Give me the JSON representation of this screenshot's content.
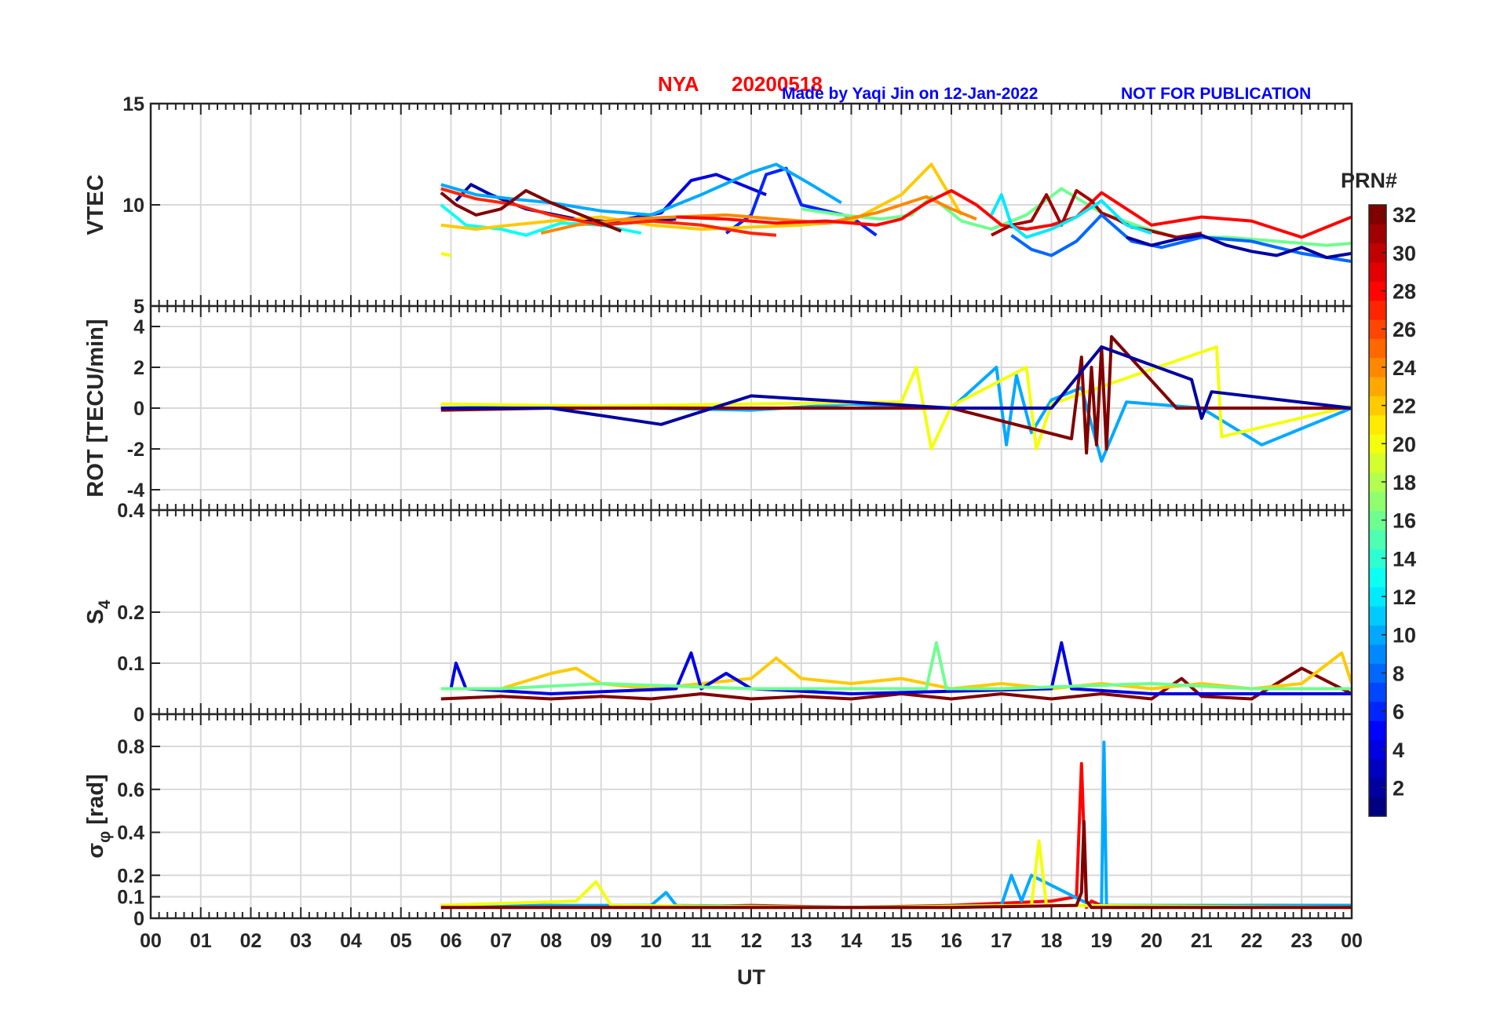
{
  "header": {
    "station": "NYA",
    "date": "20200518",
    "credit": "Made by Yaqi Jin on 12-Jan-2022",
    "notice": "NOT FOR PUBLICATION"
  },
  "xaxis": {
    "label": "UT",
    "ticks": [
      "00",
      "01",
      "02",
      "03",
      "04",
      "05",
      "06",
      "07",
      "08",
      "09",
      "10",
      "11",
      "12",
      "13",
      "14",
      "15",
      "16",
      "17",
      "18",
      "19",
      "20",
      "21",
      "22",
      "23",
      "00"
    ]
  },
  "colorbar": {
    "label": "PRN#",
    "ticks": [
      "2",
      "4",
      "6",
      "8",
      "10",
      "12",
      "14",
      "16",
      "18",
      "20",
      "22",
      "24",
      "26",
      "28",
      "30",
      "32"
    ],
    "range": [
      1,
      32
    ],
    "colormap": "jet"
  },
  "panels": [
    {
      "key": "vtec",
      "ylabel": "VTEC",
      "ylim": [
        5,
        15
      ],
      "yticks": [
        "5",
        "10",
        "15"
      ]
    },
    {
      "key": "rot",
      "ylabel": "ROT [TECU/min]",
      "ylim": [
        -5,
        5
      ],
      "yticks": [
        "-4",
        "-2",
        "0",
        "2",
        "4"
      ]
    },
    {
      "key": "s4",
      "ylabel_main": "S",
      "ylabel_sub": "4",
      "ylim": [
        0,
        0.4
      ],
      "yticks": [
        "0",
        "0.1",
        "0.2",
        "0.4"
      ]
    },
    {
      "key": "sigma",
      "ylabel_main": "σ",
      "ylabel_sub": "φ",
      "ylabel_rest": " [rad]",
      "ylim": [
        0,
        0.95
      ],
      "yticks": [
        "0",
        "0.1",
        "0.2",
        "0.4",
        "0.6",
        "0.8"
      ]
    }
  ],
  "chart_data": {
    "type": "line",
    "title": "NYA   20200518",
    "xlabel": "UT",
    "xlim": [
      0,
      24
    ],
    "grid": true,
    "colorbar_label": "PRN#",
    "series": [
      {
        "name": "2",
        "panel": "vtec",
        "x": [
          6.1,
          6.4,
          6.8,
          7.5,
          8.5,
          9.5,
          10.5
        ],
        "y": [
          10.2,
          11.0,
          10.5,
          9.8,
          9.3,
          9.1,
          9.3
        ]
      },
      {
        "name": "4",
        "panel": "vtec",
        "x": [
          9.5,
          10.2,
          10.8,
          11.3,
          11.8,
          12.3
        ],
        "y": [
          9.3,
          9.6,
          11.2,
          11.5,
          11.0,
          10.5
        ]
      },
      {
        "name": "6",
        "panel": "vtec",
        "x": [
          11.5,
          12.0,
          12.3,
          12.7,
          13.0,
          14.0,
          14.5
        ],
        "y": [
          8.6,
          9.5,
          11.5,
          11.8,
          10.0,
          9.4,
          8.5
        ]
      },
      {
        "name": "10",
        "panel": "vtec",
        "x": [
          5.8,
          6.5,
          7.2,
          8.0,
          9.0,
          10.0,
          11.0,
          12.0,
          12.5,
          13.2,
          13.8
        ],
        "y": [
          11.0,
          10.5,
          10.3,
          10.1,
          9.7,
          9.5,
          10.5,
          11.6,
          12.0,
          11.0,
          10.1
        ]
      },
      {
        "name": "13",
        "panel": "vtec",
        "x": [
          5.8,
          6.3,
          7.0,
          7.5,
          8.2,
          9.0,
          9.8
        ],
        "y": [
          10.0,
          9.0,
          8.8,
          8.5,
          9.1,
          9.0,
          8.6
        ]
      },
      {
        "name": "16",
        "panel": "vtec",
        "x": [
          13.0,
          13.8,
          14.6,
          15.2,
          15.6,
          16.2,
          16.8,
          17.5,
          18.2,
          19.0,
          19.8,
          20.5,
          21.5,
          22.5,
          23.5,
          24.0
        ],
        "y": [
          9.8,
          9.5,
          9.3,
          9.5,
          10.4,
          9.2,
          8.8,
          9.5,
          10.8,
          9.6,
          8.9,
          8.4,
          8.4,
          8.2,
          8.0,
          8.1
        ]
      },
      {
        "name": "20",
        "panel": "vtec",
        "x": [
          5.8,
          6.0
        ],
        "y": [
          7.6,
          7.5
        ]
      },
      {
        "name": "22",
        "panel": "vtec",
        "x": [
          5.8,
          6.5,
          7.2,
          8.0,
          9.0,
          10.0,
          11.0,
          12.0,
          13.0,
          14.0,
          15.0,
          15.6,
          16.2
        ],
        "y": [
          9.0,
          8.8,
          9.0,
          9.2,
          9.4,
          9.0,
          8.8,
          8.9,
          9.0,
          9.2,
          10.5,
          12.0,
          9.5
        ]
      },
      {
        "name": "24",
        "panel": "vtec",
        "x": [
          7.8,
          8.5,
          9.5,
          10.5,
          11.5,
          12.5,
          13.5,
          14.5,
          15.0,
          15.5,
          16.0,
          16.5
        ],
        "y": [
          8.6,
          9.0,
          9.3,
          9.4,
          9.5,
          9.3,
          9.1,
          9.6,
          10.0,
          10.4,
          9.8,
          9.3
        ]
      },
      {
        "name": "27",
        "panel": "vtec",
        "x": [
          5.8,
          6.5,
          7.3,
          8.0,
          9.0,
          10.0,
          11.0,
          12.0,
          12.5
        ],
        "y": [
          10.8,
          10.3,
          10.0,
          9.5,
          9.0,
          9.2,
          9.0,
          8.6,
          8.5
        ]
      },
      {
        "name": "28",
        "panel": "vtec",
        "x": [
          10.5,
          11.5,
          12.5,
          13.5,
          14.5,
          15.0,
          15.5,
          16.0,
          16.5,
          17.0,
          17.5,
          18.0,
          18.5,
          19.0,
          19.5,
          20.0,
          21.0,
          22.0,
          22.5,
          23.0,
          23.5,
          24.0
        ],
        "y": [
          9.4,
          9.3,
          9.1,
          9.2,
          9.0,
          9.3,
          10.1,
          10.7,
          10.0,
          9.0,
          8.8,
          9.0,
          9.4,
          10.6,
          9.8,
          9.0,
          9.4,
          9.2,
          8.8,
          8.4,
          8.9,
          9.4
        ]
      },
      {
        "name": "32",
        "panel": "vtec",
        "x": [
          5.8,
          6.1,
          6.5,
          7.0,
          7.5,
          8.0,
          8.5,
          9.0,
          9.4
        ],
        "y": [
          10.6,
          10.0,
          9.5,
          9.8,
          10.7,
          10.1,
          9.6,
          9.1,
          8.7
        ]
      },
      {
        "name": "31",
        "panel": "vtec",
        "x": [
          16.8,
          17.2,
          17.6,
          17.9,
          18.2,
          18.5,
          18.8,
          19.0,
          19.3,
          19.6,
          20.0,
          20.5,
          21.0
        ],
        "y": [
          8.5,
          9.0,
          9.2,
          10.5,
          9.0,
          10.7,
          10.2,
          9.6,
          9.3,
          8.9,
          8.7,
          8.4,
          8.6
        ]
      },
      {
        "name": "8",
        "panel": "vtec",
        "x": [
          17.2,
          17.6,
          18.0,
          18.5,
          19.0,
          19.6,
          20.2,
          21.0,
          22.0,
          23.0,
          24.0
        ],
        "y": [
          8.5,
          7.8,
          7.5,
          8.2,
          9.5,
          8.2,
          7.9,
          8.4,
          8.2,
          7.6,
          7.2
        ]
      },
      {
        "name": "12",
        "panel": "vtec",
        "x": [
          16.8,
          17.0,
          17.2,
          17.5,
          18.0,
          18.5,
          19.0,
          19.5,
          20.0
        ],
        "y": [
          9.5,
          10.5,
          9.0,
          8.4,
          8.8,
          9.4,
          10.2,
          9.0,
          8.6
        ]
      },
      {
        "name": "2",
        "panel": "vtec",
        "x": [
          19.5,
          20.0,
          20.5,
          21.0,
          21.5,
          22.0,
          22.5,
          23.0,
          23.5,
          24.0
        ],
        "y": [
          8.4,
          8.0,
          8.3,
          8.5,
          8.0,
          7.7,
          7.5,
          7.9,
          7.4,
          7.6
        ]
      },
      {
        "name": "10",
        "panel": "rot",
        "x": [
          5.8,
          8.0,
          10.0,
          12.0,
          14.0,
          16.0,
          16.9,
          17.1,
          17.3,
          17.6,
          18.0,
          18.6,
          19.0,
          19.5,
          21.0,
          22.2,
          24.0
        ],
        "y": [
          0.0,
          0.1,
          0.0,
          -0.1,
          0.2,
          0.0,
          2.0,
          -1.8,
          1.6,
          -1.2,
          0.4,
          1.0,
          -2.6,
          0.3,
          0.0,
          -1.8,
          0.0
        ]
      },
      {
        "name": "20",
        "panel": "rot",
        "x": [
          5.8,
          9.0,
          12.0,
          15.0,
          15.3,
          15.6,
          16.0,
          17.5,
          17.7,
          18.0,
          21.3,
          21.4,
          24.0
        ],
        "y": [
          0.2,
          0.1,
          0.2,
          0.3,
          2.0,
          -2.0,
          0.1,
          2.0,
          -2.0,
          0.2,
          3.0,
          -1.4,
          0.1
        ]
      },
      {
        "name": "32",
        "panel": "rot",
        "x": [
          5.8,
          8.0,
          12.0,
          16.0,
          18.4,
          18.6,
          18.7,
          18.8,
          18.9,
          19.0,
          19.1,
          19.2,
          20.5,
          24.0
        ],
        "y": [
          -0.1,
          0.0,
          0.0,
          0.0,
          -1.5,
          2.5,
          -2.2,
          2.0,
          -1.8,
          3.0,
          -2.0,
          3.5,
          0.0,
          0.0
        ]
      },
      {
        "name": "2",
        "panel": "rot",
        "x": [
          5.8,
          8.0,
          10.2,
          12.0,
          16.0,
          18.0,
          19.0,
          20.8,
          21.0,
          21.2,
          24.0
        ],
        "y": [
          0.0,
          0.0,
          -0.8,
          0.6,
          0.0,
          0.0,
          3.0,
          1.4,
          -0.5,
          0.8,
          0.0
        ]
      },
      {
        "name": "32",
        "panel": "s4",
        "x": [
          5.8,
          7.0,
          8.0,
          9.0,
          10.0,
          11.0,
          12.0,
          13.0,
          14.0,
          15.0,
          16.0,
          17.0,
          18.0,
          19.0,
          20.0,
          20.6,
          21.0,
          22.0,
          23.0,
          24.0
        ],
        "y": [
          0.03,
          0.035,
          0.03,
          0.035,
          0.03,
          0.04,
          0.03,
          0.035,
          0.03,
          0.04,
          0.03,
          0.04,
          0.03,
          0.04,
          0.03,
          0.07,
          0.035,
          0.03,
          0.09,
          0.04
        ]
      },
      {
        "name": "22",
        "panel": "s4",
        "x": [
          5.8,
          7.0,
          8.0,
          8.5,
          9.0,
          10.0,
          11.0,
          12.0,
          12.5,
          13.0,
          14.0,
          15.0,
          16.0,
          17.0,
          18.0,
          19.0,
          20.0,
          21.0,
          22.0,
          23.0,
          23.8,
          24.0
        ],
        "y": [
          0.05,
          0.05,
          0.08,
          0.09,
          0.06,
          0.05,
          0.06,
          0.07,
          0.11,
          0.07,
          0.06,
          0.07,
          0.05,
          0.06,
          0.05,
          0.06,
          0.05,
          0.06,
          0.05,
          0.06,
          0.12,
          0.06
        ]
      },
      {
        "name": "4",
        "panel": "s4",
        "x": [
          6.0,
          6.1,
          6.3,
          8.0,
          10.5,
          10.8,
          11.0,
          11.5,
          12.0,
          14.0,
          18.0,
          18.2,
          18.4,
          20.0,
          24.0
        ],
        "y": [
          0.05,
          0.1,
          0.05,
          0.04,
          0.05,
          0.12,
          0.05,
          0.08,
          0.05,
          0.04,
          0.05,
          0.14,
          0.05,
          0.04,
          0.04
        ]
      },
      {
        "name": "16",
        "panel": "s4",
        "x": [
          5.8,
          7.0,
          9.0,
          12.0,
          14.0,
          15.5,
          15.7,
          15.9,
          17.0,
          20.0,
          22.0,
          24.0
        ],
        "y": [
          0.05,
          0.05,
          0.06,
          0.05,
          0.05,
          0.05,
          0.14,
          0.05,
          0.05,
          0.06,
          0.05,
          0.05
        ]
      },
      {
        "name": "28",
        "panel": "sigma",
        "x": [
          5.8,
          8.0,
          10.0,
          12.0,
          14.0,
          16.0,
          18.0,
          18.5,
          18.6,
          18.7,
          18.8,
          19.0,
          20.0,
          22.0,
          24.0
        ],
        "y": [
          0.05,
          0.06,
          0.05,
          0.06,
          0.05,
          0.06,
          0.08,
          0.1,
          0.72,
          0.05,
          0.08,
          0.06,
          0.05,
          0.06,
          0.06
        ]
      },
      {
        "name": "10",
        "panel": "sigma",
        "x": [
          5.8,
          10.0,
          10.3,
          10.5,
          14.0,
          17.0,
          17.2,
          17.4,
          17.6,
          18.8,
          19.0,
          19.05,
          19.1,
          19.3,
          24.0
        ],
        "y": [
          0.06,
          0.06,
          0.12,
          0.06,
          0.05,
          0.06,
          0.2,
          0.08,
          0.2,
          0.06,
          0.06,
          0.82,
          0.06,
          0.06,
          0.06
        ]
      },
      {
        "name": "20",
        "panel": "sigma",
        "x": [
          5.8,
          8.5,
          8.9,
          9.2,
          14.0,
          17.6,
          17.75,
          17.9,
          24.0
        ],
        "y": [
          0.06,
          0.08,
          0.17,
          0.06,
          0.05,
          0.06,
          0.36,
          0.06,
          0.05
        ]
      },
      {
        "name": "32",
        "panel": "sigma",
        "x": [
          5.8,
          8.0,
          12.0,
          16.0,
          18.5,
          18.6,
          18.65,
          18.7,
          18.8,
          20.0,
          24.0
        ],
        "y": [
          0.05,
          0.05,
          0.05,
          0.05,
          0.06,
          0.12,
          0.45,
          0.08,
          0.05,
          0.05,
          0.05
        ]
      }
    ]
  }
}
